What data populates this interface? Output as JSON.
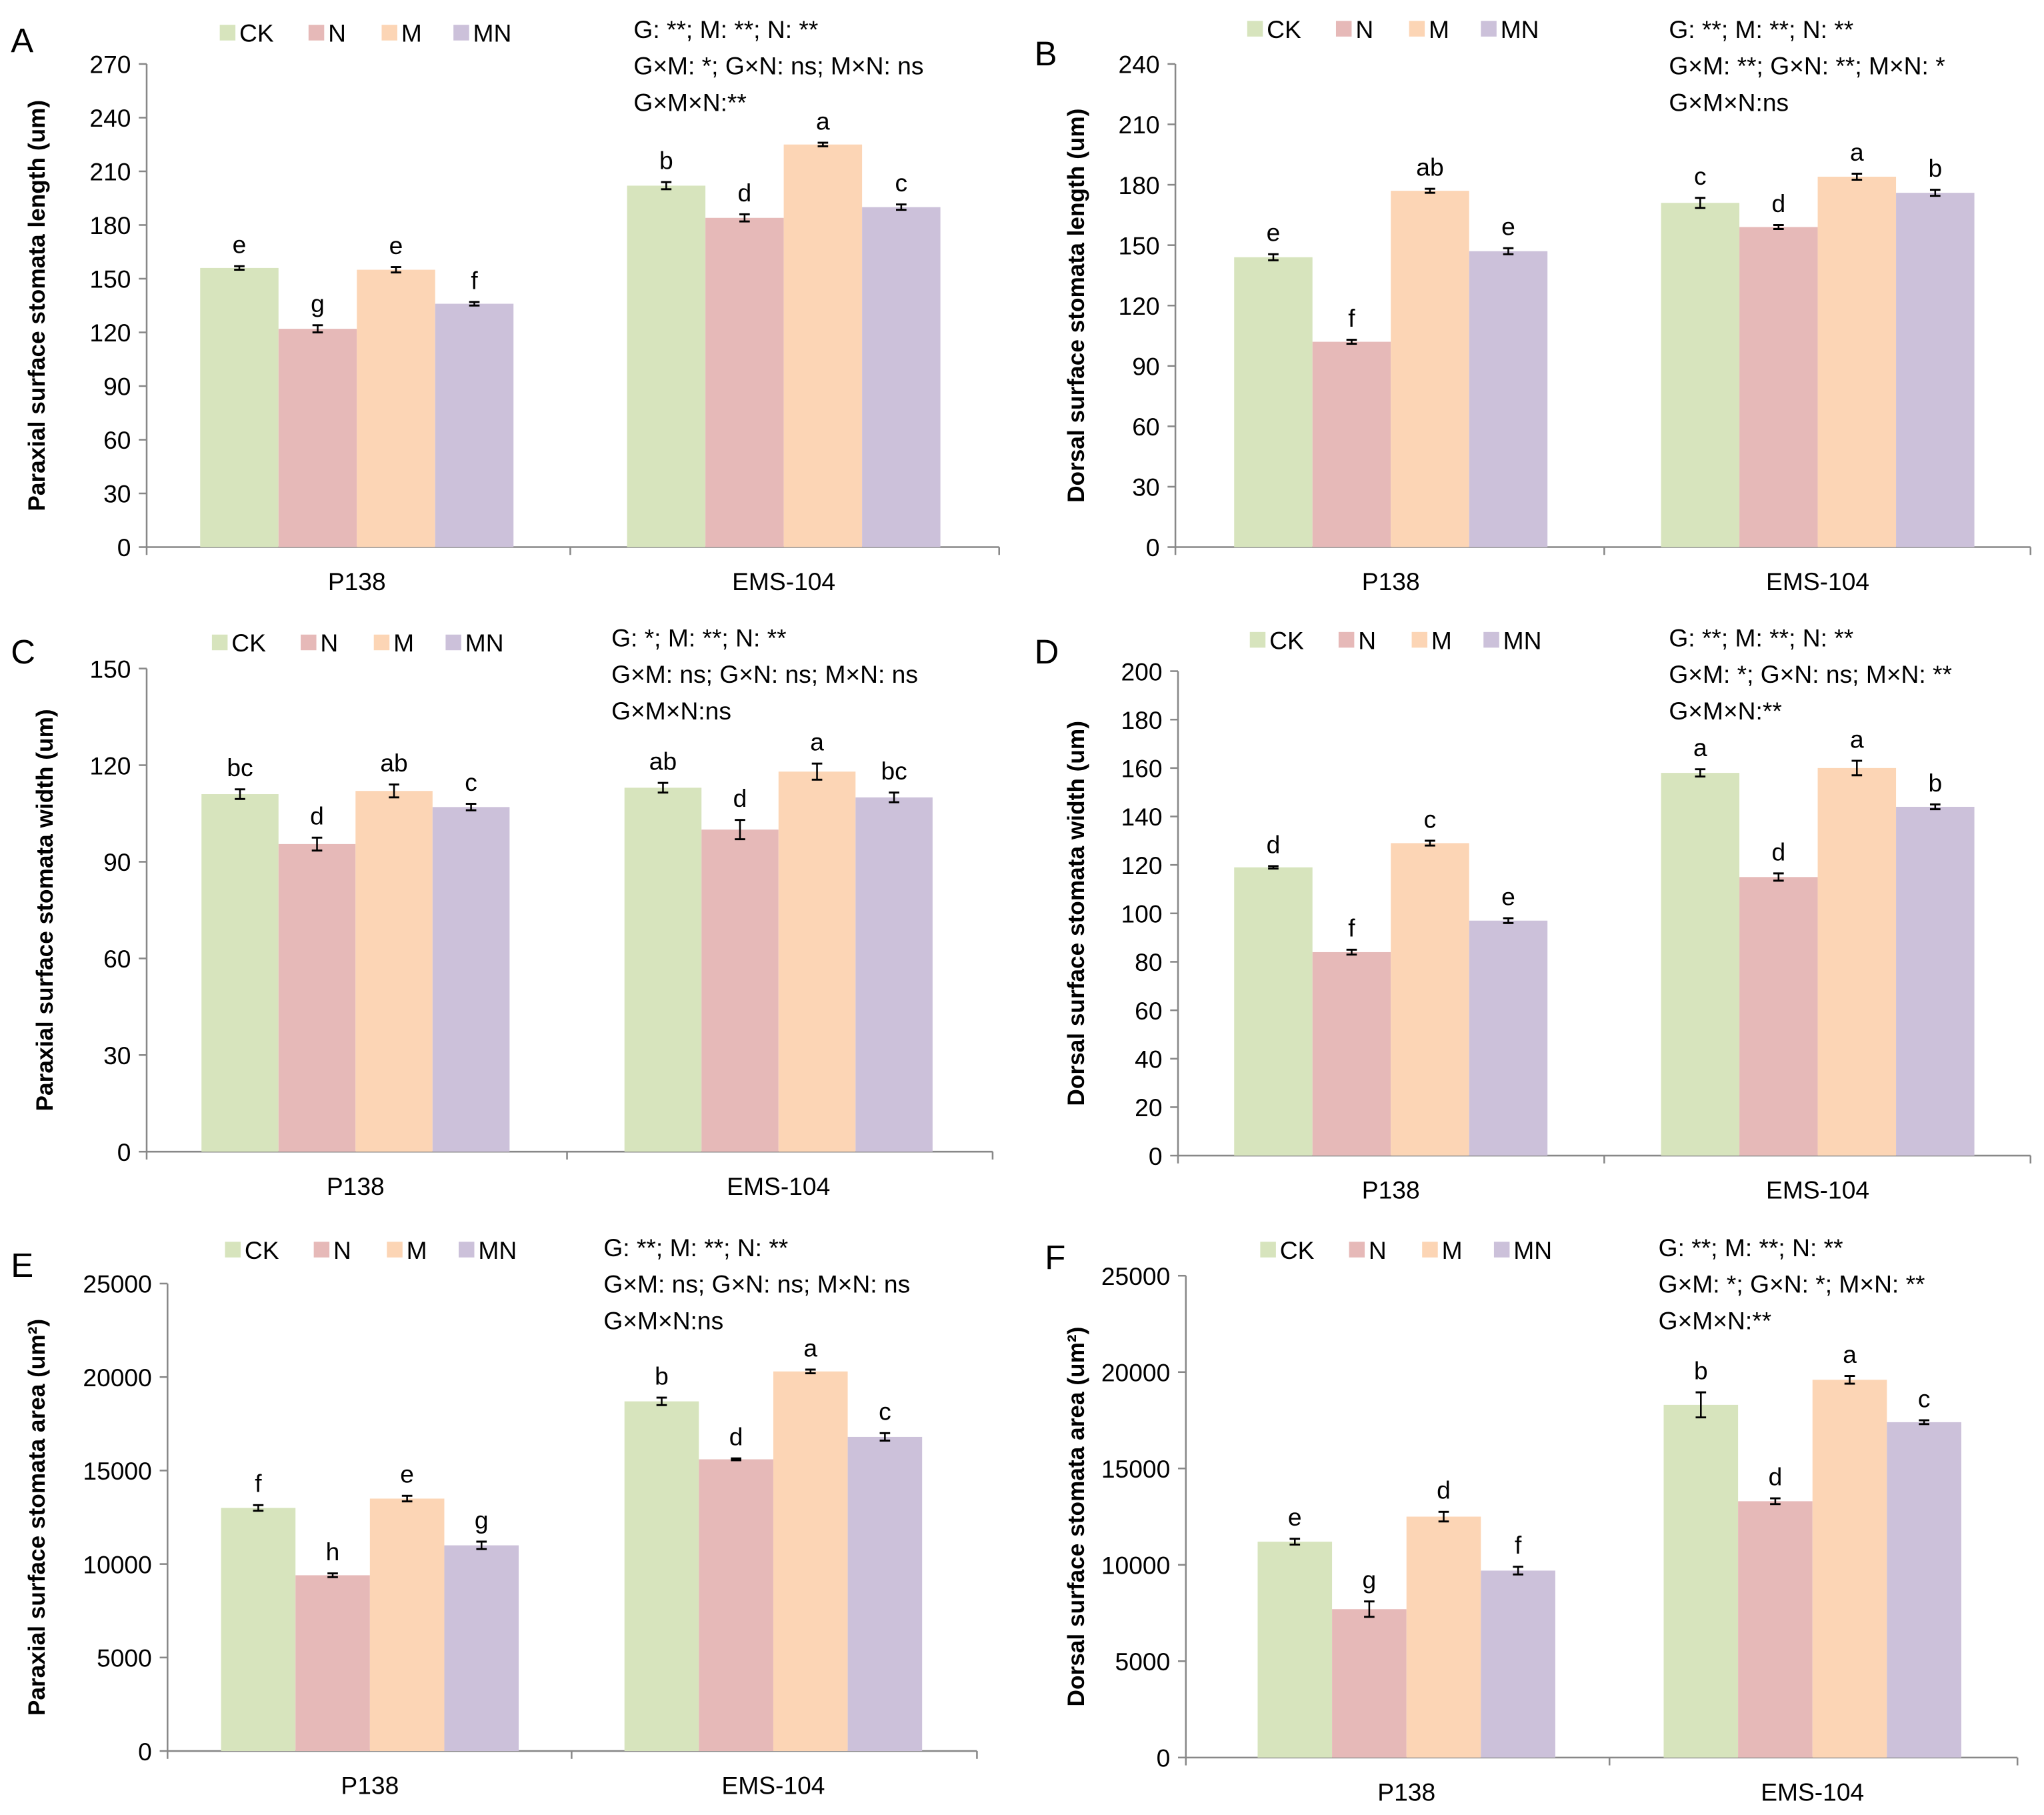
{
  "legend": [
    {
      "name": "CK",
      "color": "#d7e4bd"
    },
    {
      "name": "N",
      "color": "#e6b9b8"
    },
    {
      "name": "M",
      "color": "#fcd5b5"
    },
    {
      "name": "MN",
      "color": "#ccc1da"
    }
  ],
  "chart_data": [
    {
      "type": "bar",
      "panel": "A",
      "ylabel": "Paraxial surface stomata length (um)",
      "categories": [
        "P138",
        "EMS-104"
      ],
      "ylim": [
        0,
        270
      ],
      "yticks": [
        0,
        30,
        60,
        90,
        120,
        150,
        180,
        210,
        240,
        270
      ],
      "series": [
        {
          "name": "CK",
          "values": [
            156,
            202
          ],
          "errors": [
            1,
            2
          ],
          "letters": [
            "e",
            "b"
          ]
        },
        {
          "name": "N",
          "values": [
            122,
            184
          ],
          "errors": [
            2,
            2
          ],
          "letters": [
            "g",
            "d"
          ]
        },
        {
          "name": "M",
          "values": [
            155,
            225
          ],
          "errors": [
            1.5,
            1
          ],
          "letters": [
            "e",
            "a"
          ]
        },
        {
          "name": "MN",
          "values": [
            136,
            190
          ],
          "errors": [
            1,
            1.5
          ],
          "letters": [
            "f",
            "c"
          ]
        }
      ],
      "stats": [
        "G: **; M: **; N: **",
        "G×M: *; G×N: ns; M×N: ns",
        "G×M×N:**"
      ]
    },
    {
      "type": "bar",
      "panel": "B",
      "ylabel": "Dorsal surface stomata length (um)",
      "categories": [
        "P138",
        "EMS-104"
      ],
      "ylim": [
        0,
        240
      ],
      "yticks": [
        0,
        30,
        60,
        90,
        120,
        150,
        180,
        210,
        240
      ],
      "series": [
        {
          "name": "CK",
          "values": [
            144,
            171
          ],
          "errors": [
            1.5,
            2.5
          ],
          "letters": [
            "e",
            "c"
          ]
        },
        {
          "name": "N",
          "values": [
            102,
            159
          ],
          "errors": [
            1,
            1
          ],
          "letters": [
            "f",
            "d"
          ]
        },
        {
          "name": "M",
          "values": [
            177,
            184
          ],
          "errors": [
            1,
            1.5
          ],
          "letters": [
            "ab",
            "a"
          ]
        },
        {
          "name": "MN",
          "values": [
            147,
            176
          ],
          "errors": [
            1.5,
            1.5
          ],
          "letters": [
            "e",
            "b"
          ]
        }
      ],
      "stats": [
        "G: **; M: **; N: **",
        "G×M: **; G×N: **; M×N: *",
        "G×M×N:ns"
      ]
    },
    {
      "type": "bar",
      "panel": "C",
      "ylabel": "Paraxial surface stomata width (um)",
      "categories": [
        "P138",
        "EMS-104"
      ],
      "ylim": [
        0,
        150
      ],
      "yticks": [
        0,
        30,
        60,
        90,
        120,
        150
      ],
      "series": [
        {
          "name": "CK",
          "values": [
            111,
            113
          ],
          "errors": [
            1.5,
            1.5
          ],
          "letters": [
            "bc",
            "ab"
          ]
        },
        {
          "name": "N",
          "values": [
            95.5,
            100
          ],
          "errors": [
            2,
            3
          ],
          "letters": [
            "d",
            "d"
          ]
        },
        {
          "name": "M",
          "values": [
            112,
            118
          ],
          "errors": [
            2,
            2.5
          ],
          "letters": [
            "ab",
            "a"
          ]
        },
        {
          "name": "MN",
          "values": [
            107,
            110
          ],
          "errors": [
            1,
            1.5
          ],
          "letters": [
            "c",
            "bc"
          ]
        }
      ],
      "stats": [
        "G: *; M: **; N: **",
        "G×M: ns; G×N: ns; M×N: ns",
        "G×M×N:ns"
      ]
    },
    {
      "type": "bar",
      "panel": "D",
      "ylabel": "Dorsal surface stomata width (um)",
      "categories": [
        "P138",
        "EMS-104"
      ],
      "ylim": [
        0,
        200
      ],
      "yticks": [
        0,
        20,
        40,
        60,
        80,
        100,
        120,
        140,
        160,
        180,
        200
      ],
      "series": [
        {
          "name": "CK",
          "values": [
            119,
            158
          ],
          "errors": [
            0.5,
            1.5
          ],
          "letters": [
            "d",
            "a"
          ]
        },
        {
          "name": "N",
          "values": [
            84,
            115
          ],
          "errors": [
            1,
            1.5
          ],
          "letters": [
            "f",
            "d"
          ]
        },
        {
          "name": "M",
          "values": [
            129,
            160
          ],
          "errors": [
            1,
            3
          ],
          "letters": [
            "c",
            "a"
          ]
        },
        {
          "name": "MN",
          "values": [
            97,
            144
          ],
          "errors": [
            1,
            1
          ],
          "letters": [
            "e",
            "b"
          ]
        }
      ],
      "stats": [
        "G: **; M: **; N: **",
        "G×M: *; G×N: ns; M×N: **",
        "G×M×N:**"
      ]
    },
    {
      "type": "bar",
      "panel": "E",
      "ylabel": "Paraxial surface stomata area (um²)",
      "categories": [
        "P138",
        "EMS-104"
      ],
      "ylim": [
        0,
        25000
      ],
      "yticks": [
        0,
        5000,
        10000,
        15000,
        20000,
        25000
      ],
      "series": [
        {
          "name": "CK",
          "values": [
            13000,
            18700
          ],
          "errors": [
            150,
            200
          ],
          "letters": [
            "f",
            "b"
          ]
        },
        {
          "name": "N",
          "values": [
            9400,
            15600
          ],
          "errors": [
            100,
            50
          ],
          "letters": [
            "h",
            "d"
          ]
        },
        {
          "name": "M",
          "values": [
            13500,
            20300
          ],
          "errors": [
            150,
            100
          ],
          "letters": [
            "e",
            "a"
          ]
        },
        {
          "name": "MN",
          "values": [
            11000,
            16800
          ],
          "errors": [
            200,
            200
          ],
          "letters": [
            "g",
            "c"
          ]
        }
      ],
      "stats": [
        "G: **; M: **; N: **",
        "G×M: ns; G×N: ns; M×N: ns",
        "G×M×N:ns"
      ]
    },
    {
      "type": "bar",
      "panel": "F",
      "ylabel": "Dorsal surface stomata area (um²)",
      "categories": [
        "P138",
        "EMS-104"
      ],
      "ylim": [
        0,
        25000
      ],
      "yticks": [
        0,
        5000,
        10000,
        15000,
        20000,
        25000
      ],
      "series": [
        {
          "name": "CK",
          "values": [
            11200,
            18300
          ],
          "errors": [
            150,
            650
          ],
          "letters": [
            "e",
            "b"
          ]
        },
        {
          "name": "N",
          "values": [
            7700,
            13300
          ],
          "errors": [
            400,
            150
          ],
          "letters": [
            "g",
            "d"
          ]
        },
        {
          "name": "M",
          "values": [
            12500,
            19600
          ],
          "errors": [
            250,
            200
          ],
          "letters": [
            "d",
            "a"
          ]
        },
        {
          "name": "MN",
          "values": [
            9700,
            17400
          ],
          "errors": [
            200,
            100
          ],
          "letters": [
            "f",
            "c"
          ]
        }
      ],
      "stats": [
        "G: **; M: **; N: **",
        "G×M: *; G×N: *; M×N: **",
        "G×M×N:**"
      ]
    }
  ]
}
